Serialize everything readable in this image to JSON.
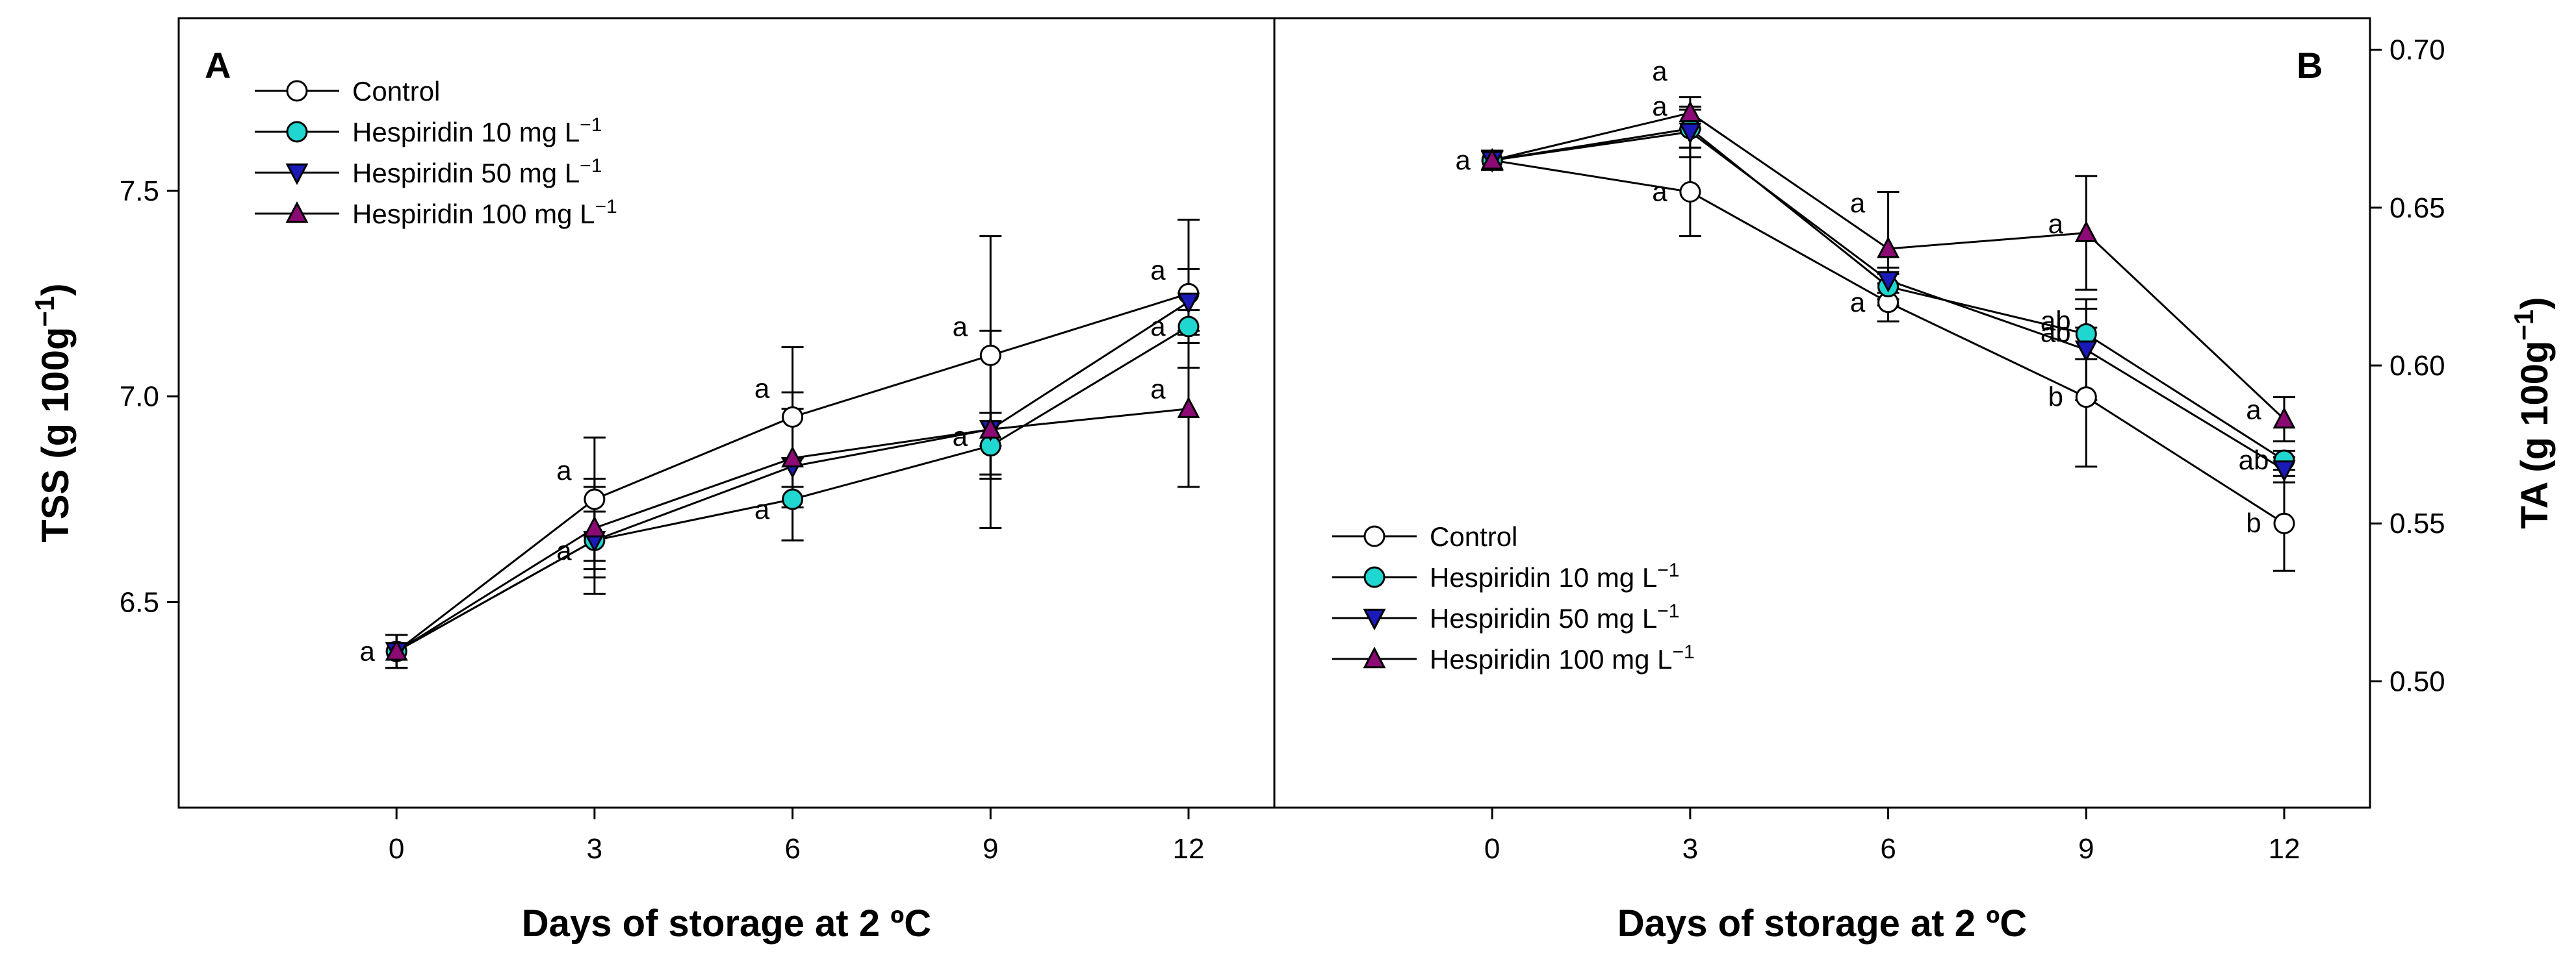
{
  "chart_data": [
    {
      "type": "line",
      "panel_label": "A",
      "xlabel": "Days of storage at 2 ºC",
      "ylabel": "TSS (g 100g",
      "ylabel_exponent": "−1",
      "ylabel_close": ")",
      "ylim": [
        6.0,
        7.92
      ],
      "xlim": [
        -3.3,
        13.3
      ],
      "x": [
        0,
        3,
        6,
        9,
        12
      ],
      "x_tick_labels": [
        "0",
        "3",
        "6",
        "9",
        "12"
      ],
      "y_ticks": [
        6.5,
        7.0,
        7.5
      ],
      "y_tick_labels": [
        "6.5",
        "7.0",
        "7.5"
      ],
      "legend_position": "top-left",
      "series": [
        {
          "name": "Control",
          "values": [
            6.38,
            6.75,
            6.95,
            7.1,
            7.25
          ],
          "errors": [
            0.04,
            0.15,
            0.17,
            0.29,
            0.18
          ],
          "letters": [
            "a",
            "a",
            "a",
            "a",
            "a"
          ]
        },
        {
          "name": "Hespiridin 10 mg L",
          "values": [
            6.38,
            6.65,
            6.75,
            6.88,
            7.17
          ],
          "errors": [
            0.04,
            0.07,
            0.1,
            0.08,
            0.04
          ],
          "letters": [
            "",
            "a",
            "a",
            "a",
            "a"
          ]
        },
        {
          "name": "Hespiridin 50 mg L",
          "values": [
            6.38,
            6.65,
            6.83,
            6.92,
            7.23
          ],
          "errors": [
            0.04,
            0.13,
            0.18,
            0.04,
            0.08
          ],
          "letters": [
            "",
            "",
            "",
            "",
            ""
          ]
        },
        {
          "name": "Hespiridin 100 mg L",
          "values": [
            6.38,
            6.68,
            6.85,
            6.92,
            6.97
          ],
          "errors": [
            0.04,
            0.12,
            0.12,
            0.24,
            0.19
          ],
          "letters": [
            "",
            "",
            "",
            "",
            "a"
          ]
        }
      ]
    },
    {
      "type": "line",
      "panel_label": "B",
      "xlabel": "Days of storage at 2 ºC",
      "ylabel": "TA (g 100g",
      "ylabel_exponent": "−1",
      "ylabel_close": ")",
      "ylim": [
        0.46,
        0.71
      ],
      "xlim": [
        -3.3,
        13.3
      ],
      "x": [
        0,
        3,
        6,
        9,
        12
      ],
      "x_tick_labels": [
        "0",
        "3",
        "6",
        "9",
        "12"
      ],
      "y_ticks": [
        0.5,
        0.55,
        0.6,
        0.65,
        0.7
      ],
      "y_tick_labels": [
        "0.50",
        "0.55",
        "0.60",
        "0.65",
        "0.70"
      ],
      "legend_position": "bottom-left",
      "series": [
        {
          "name": "Control",
          "values": [
            0.665,
            0.655,
            0.62,
            0.59,
            0.55
          ],
          "errors": [
            0.003,
            0.014,
            0.006,
            0.022,
            0.015
          ],
          "letters": [
            "a",
            "a",
            "a",
            "b",
            "b"
          ]
        },
        {
          "name": "Hespiridin 10 mg L",
          "values": [
            0.665,
            0.675,
            0.625,
            0.61,
            0.57
          ],
          "errors": [
            0.003,
            0.006,
            0.004,
            0.008,
            0.003
          ],
          "letters": [
            "",
            "a",
            "",
            "ab",
            "ab"
          ]
        },
        {
          "name": "Hespiridin 50 mg L",
          "values": [
            0.665,
            0.674,
            0.627,
            0.605,
            0.567
          ],
          "errors": [
            0.003,
            0.008,
            0.004,
            0.016,
            0.004
          ],
          "letters": [
            "",
            "",
            "",
            "ab",
            ""
          ]
        },
        {
          "name": "Hespiridin 100 mg L",
          "values": [
            0.665,
            0.68,
            0.637,
            0.642,
            0.583
          ],
          "errors": [
            0.003,
            0.005,
            0.018,
            0.018,
            0.007
          ],
          "letters": [
            "",
            "a",
            "a",
            "a",
            "a"
          ]
        }
      ]
    }
  ],
  "legend_unit_exponent": "−1",
  "colors": {
    "control": "#ffffff",
    "hesp10": "#1fd6d0",
    "hesp50": "#1a1ab8",
    "hesp100": "#8b0a74",
    "line": "#000000"
  }
}
